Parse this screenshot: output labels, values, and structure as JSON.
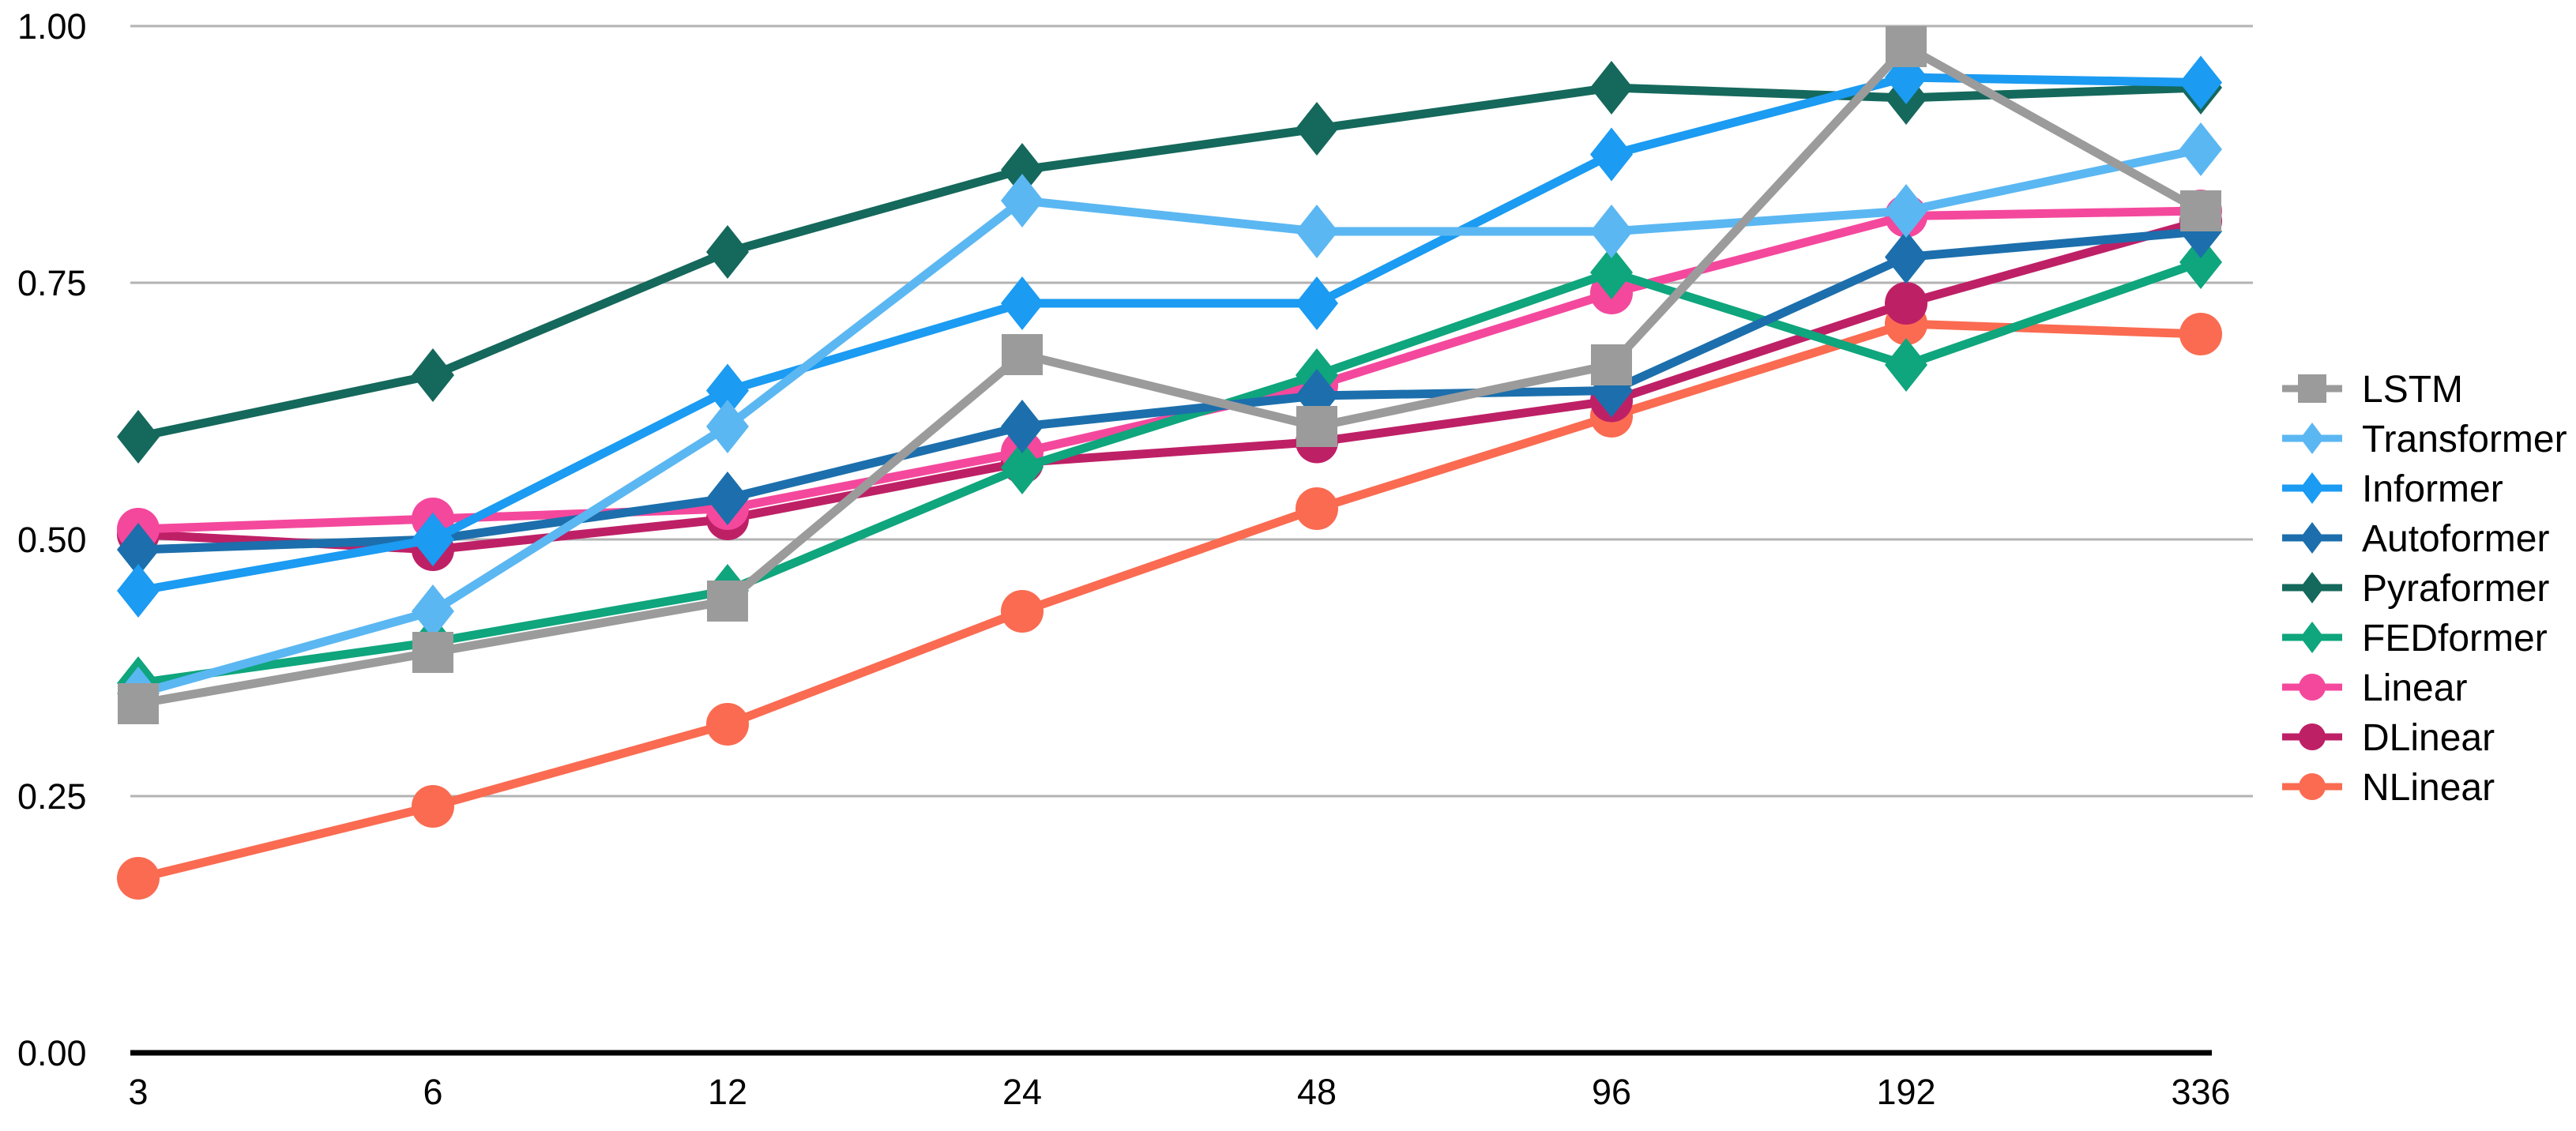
{
  "chart_data": {
    "type": "line",
    "title": "",
    "xlabel": "",
    "ylabel": "",
    "categories": [
      "3",
      "6",
      "12",
      "24",
      "48",
      "96",
      "192",
      "336"
    ],
    "y_axis": {
      "min": 0.0,
      "max": 1.0,
      "tick_values": [
        0.0,
        0.25,
        0.5,
        0.75,
        1.0
      ],
      "ticks": [
        "0.00",
        "0.25",
        "0.50",
        "0.75",
        "1.00"
      ],
      "gridline_values": [
        0.25,
        0.5,
        0.75,
        1.0
      ]
    },
    "grid": true,
    "legend_position": "right",
    "series": [
      {
        "name": "LSTM",
        "marker": "square",
        "color": "#9B9B9B",
        "values": [
          0.34,
          0.39,
          0.44,
          0.68,
          0.61,
          0.67,
          0.98,
          0.82
        ]
      },
      {
        "name": "Transformer",
        "marker": "diamond",
        "color": "#5BB7F2",
        "values": [
          0.35,
          0.43,
          0.61,
          0.83,
          0.8,
          0.8,
          0.82,
          0.88
        ]
      },
      {
        "name": "Informer",
        "marker": "diamond",
        "color": "#1B9BF2",
        "values": [
          0.45,
          0.5,
          0.645,
          0.73,
          0.73,
          0.875,
          0.95,
          0.945
        ]
      },
      {
        "name": "Autoformer",
        "marker": "diamond",
        "color": "#1C6FAC",
        "values": [
          0.49,
          0.5,
          0.54,
          0.61,
          0.64,
          0.645,
          0.775,
          0.8
        ]
      },
      {
        "name": "Pyraformer",
        "marker": "diamond",
        "color": "#15685C",
        "values": [
          0.6,
          0.66,
          0.78,
          0.86,
          0.9,
          0.94,
          0.93,
          0.94
        ]
      },
      {
        "name": "FEDformer",
        "marker": "diamond",
        "color": "#0FA57D",
        "values": [
          0.36,
          0.4,
          0.45,
          0.57,
          0.66,
          0.76,
          0.67,
          0.77
        ]
      },
      {
        "name": "Linear",
        "marker": "circle",
        "color": "#F4489D",
        "values": [
          0.51,
          0.52,
          0.53,
          0.585,
          0.65,
          0.74,
          0.815,
          0.82
        ]
      },
      {
        "name": "DLinear",
        "marker": "circle",
        "color": "#BE2066",
        "values": [
          0.505,
          0.49,
          0.52,
          0.575,
          0.595,
          0.635,
          0.73,
          0.81
        ]
      },
      {
        "name": "NLinear",
        "marker": "circle",
        "color": "#FA6B51",
        "values": [
          0.17,
          0.24,
          0.32,
          0.43,
          0.53,
          0.62,
          0.71,
          0.7
        ]
      }
    ],
    "axis_color": "#000000",
    "gridline_color": "#b3b3b3"
  }
}
